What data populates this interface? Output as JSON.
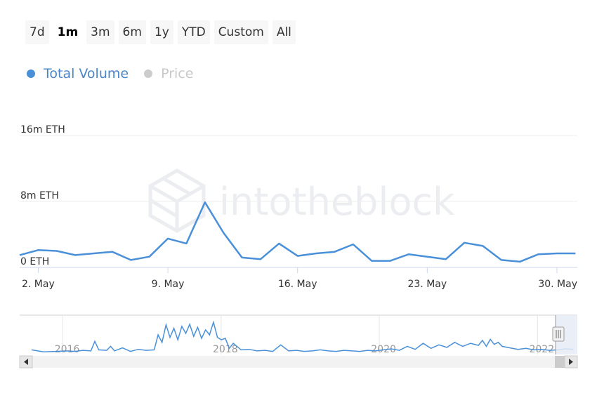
{
  "range_selector": {
    "buttons": [
      "7d",
      "1m",
      "3m",
      "6m",
      "1y",
      "YTD",
      "Custom",
      "All"
    ],
    "selected": "1m"
  },
  "legend": {
    "items": [
      {
        "label": "Total Volume",
        "color": "#4a90d9",
        "active": true
      },
      {
        "label": "Price",
        "color": "#cccccc",
        "active": false
      }
    ]
  },
  "watermark": "intotheblock",
  "colors": {
    "series": "#4a90d9",
    "grid": "#eeeeee",
    "axis": "#ccd6eb",
    "navigator_bg": "#e6ebf5",
    "scrollbar": "#f2f2f2"
  },
  "chart_data": {
    "type": "line",
    "series": [
      {
        "name": "Total Volume",
        "x": [
          1,
          2,
          3,
          4,
          5,
          6,
          7,
          8,
          9,
          10,
          11,
          12,
          13,
          14,
          15,
          16,
          17,
          18,
          19,
          20,
          21,
          22,
          23,
          24,
          25,
          26,
          27,
          28,
          29,
          30,
          31
        ],
        "values": [
          1.5,
          2.1,
          2.0,
          1.5,
          1.7,
          1.9,
          0.9,
          1.3,
          3.5,
          2.9,
          7.9,
          4.2,
          1.2,
          1.0,
          2.9,
          1.4,
          1.7,
          1.9,
          2.8,
          0.8,
          0.8,
          1.6,
          1.3,
          1.0,
          3.0,
          2.6,
          0.9,
          0.7,
          1.6,
          1.7,
          1.7
        ]
      }
    ],
    "x_tick_labels": [
      {
        "x": 2,
        "label": "2. May"
      },
      {
        "x": 9,
        "label": "9. May"
      },
      {
        "x": 16,
        "label": "16. May"
      },
      {
        "x": 23,
        "label": "23. May"
      },
      {
        "x": 30,
        "label": "30. May"
      }
    ],
    "y_tick_labels": [
      {
        "value": 0,
        "label": "0 ETH"
      },
      {
        "value": 8,
        "label": "8m ETH"
      },
      {
        "value": 16,
        "label": "16m ETH"
      }
    ],
    "ylim": [
      0,
      16
    ],
    "xlim": [
      1,
      31.1
    ],
    "grid": true,
    "navigator": {
      "year_labels": [
        {
          "x": 2016,
          "label": "2016"
        },
        {
          "x": 2018,
          "label": "2018"
        },
        {
          "x": 2020,
          "label": "2020"
        },
        {
          "x": 2022,
          "label": "2022"
        }
      ],
      "xlim": [
        2015.4,
        2022.45
      ],
      "series_x": [
        2015.55,
        2015.7,
        2015.85,
        2016.0,
        2016.1,
        2016.2,
        2016.3,
        2016.35,
        2016.4,
        2016.5,
        2016.55,
        2016.6,
        2016.7,
        2016.8,
        2016.9,
        2017.0,
        2017.1,
        2017.15,
        2017.2,
        2017.25,
        2017.3,
        2017.35,
        2017.4,
        2017.45,
        2017.5,
        2017.55,
        2017.6,
        2017.65,
        2017.7,
        2017.75,
        2017.8,
        2017.85,
        2017.9,
        2017.95,
        2018.0,
        2018.05,
        2018.1,
        2018.2,
        2018.3,
        2018.4,
        2018.5,
        2018.6,
        2018.7,
        2018.8,
        2018.9,
        2019.0,
        2019.1,
        2019.2,
        2019.3,
        2019.4,
        2019.5,
        2019.6,
        2019.7,
        2019.8,
        2019.9,
        2020.0,
        2020.1,
        2020.2,
        2020.3,
        2020.4,
        2020.5,
        2020.6,
        2020.7,
        2020.8,
        2020.9,
        2021.0,
        2021.1,
        2021.2,
        2021.25,
        2021.3,
        2021.35,
        2021.4,
        2021.45,
        2021.5,
        2021.6,
        2021.7,
        2021.8,
        2021.9,
        2022.0,
        2022.1,
        2022.2,
        2022.3,
        2022.4
      ],
      "series_values": [
        0.5,
        0.1,
        0.2,
        0.3,
        0.2,
        0.4,
        0.3,
        2.2,
        0.5,
        0.4,
        1.2,
        0.3,
        0.9,
        0.2,
        0.6,
        0.4,
        0.5,
        3.5,
        2.0,
        5.5,
        3.0,
        4.8,
        2.5,
        5.2,
        3.8,
        5.6,
        3.2,
        5.0,
        2.8,
        4.5,
        3.5,
        6.0,
        3.0,
        2.5,
        2.8,
        0.8,
        1.8,
        0.5,
        0.6,
        0.3,
        0.4,
        0.2,
        1.5,
        0.3,
        0.4,
        0.2,
        0.3,
        0.5,
        0.3,
        0.2,
        0.4,
        0.3,
        0.2,
        0.4,
        0.3,
        0.5,
        0.7,
        0.4,
        1.2,
        0.6,
        1.8,
        0.8,
        1.5,
        1.0,
        2.0,
        1.2,
        1.8,
        1.4,
        2.4,
        1.2,
        2.6,
        1.6,
        2.0,
        1.2,
        0.9,
        0.6,
        0.8,
        0.5,
        0.6,
        0.4,
        0.5,
        0.7,
        0.6
      ],
      "ylim": [
        0,
        7
      ]
    }
  }
}
